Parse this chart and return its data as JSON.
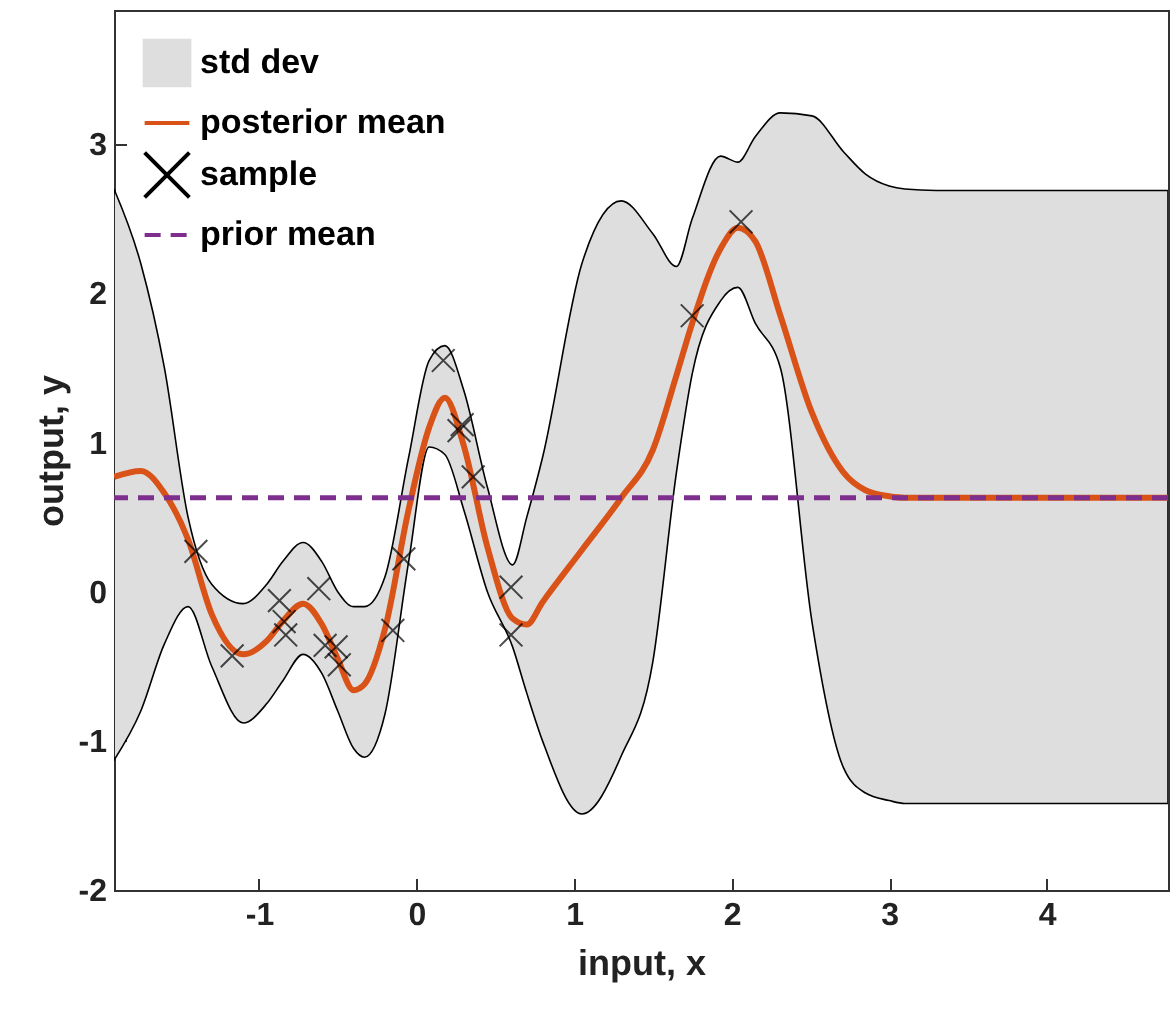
{
  "chart_data": {
    "type": "line",
    "xlabel": "input, x",
    "ylabel": "output, y",
    "xlim": [
      -1.92,
      4.77
    ],
    "ylim": [
      -2,
      3.9
    ],
    "xticks": [
      -1,
      0,
      1,
      2,
      3,
      4
    ],
    "yticks": [
      -2,
      -1,
      0,
      1,
      2,
      3
    ],
    "grid": false,
    "legend": "top left",
    "series": [
      {
        "name": "std dev",
        "type": "area",
        "color": "#dedede"
      },
      {
        "name": "posterior mean",
        "color": "#d95319",
        "x": [
          -1.92,
          -1.75,
          -1.6,
          -1.45,
          -1.3,
          -1.1,
          -0.95,
          -0.85,
          -0.72,
          -0.6,
          -0.5,
          -0.4,
          -0.33,
          -0.2,
          -0.05,
          0.08,
          0.18,
          0.3,
          0.45,
          0.61,
          0.7,
          0.8,
          1.05,
          1.3,
          1.5,
          1.65,
          1.75,
          1.93,
          2.04,
          2.15,
          2.31,
          2.51,
          2.71,
          2.85,
          3.0,
          3.1,
          3.3,
          4.77
        ],
        "values": [
          0.77,
          0.81,
          0.66,
          0.35,
          -0.15,
          -0.42,
          -0.33,
          -0.2,
          -0.08,
          -0.22,
          -0.45,
          -0.66,
          -0.62,
          -0.25,
          0.55,
          1.1,
          1.3,
          0.98,
          0.3,
          -0.18,
          -0.22,
          -0.07,
          0.28,
          0.63,
          0.95,
          1.45,
          1.8,
          2.3,
          2.44,
          2.35,
          1.85,
          1.2,
          0.8,
          0.68,
          0.64,
          0.63,
          0.63,
          0.63
        ],
        "upper": [
          2.7,
          2.2,
          1.5,
          0.5,
          0.05,
          -0.08,
          0.05,
          0.2,
          0.33,
          0.2,
          0.0,
          -0.1,
          -0.1,
          0.1,
          0.9,
          1.55,
          1.65,
          1.35,
          0.7,
          0.18,
          0.5,
          0.9,
          2.2,
          2.62,
          2.4,
          2.18,
          2.5,
          2.92,
          2.88,
          3.05,
          3.21,
          3.19,
          2.95,
          2.8,
          2.72,
          2.7,
          2.69,
          2.69
        ],
        "lower": [
          -1.13,
          -0.8,
          -0.35,
          -0.1,
          -0.5,
          -0.88,
          -0.75,
          -0.6,
          -0.42,
          -0.55,
          -0.8,
          -1.05,
          -1.11,
          -0.82,
          0.2,
          0.97,
          0.92,
          0.55,
          0.0,
          -0.37,
          -0.68,
          -1.0,
          -1.49,
          -1.1,
          -0.47,
          0.8,
          1.46,
          1.95,
          2.04,
          1.8,
          1.5,
          -0.2,
          -1.18,
          -1.35,
          -1.4,
          -1.42,
          -1.42,
          -1.42
        ]
      },
      {
        "name": "sample",
        "type": "scatter",
        "color": "#000000",
        "marker": "cross",
        "x": [
          -1.4,
          -1.17,
          -0.87,
          -0.84,
          -0.83,
          -0.62,
          -0.58,
          -0.51,
          -0.49,
          -0.15,
          -0.08,
          0.17,
          0.27,
          0.29,
          0.36,
          0.6,
          0.6,
          1.75,
          2.06
        ],
        "values": [
          0.27,
          -0.43,
          -0.06,
          -0.2,
          -0.29,
          0.02,
          -0.36,
          -0.37,
          -0.49,
          -0.26,
          0.22,
          1.55,
          1.08,
          1.12,
          0.77,
          0.03,
          -0.29,
          1.85,
          2.48
        ]
      }
    ],
    "ref_lines": [
      {
        "axis": "y",
        "value": 0.63,
        "label": "prior mean",
        "color": "#7e2f8e",
        "line_style": "dashed"
      }
    ]
  }
}
